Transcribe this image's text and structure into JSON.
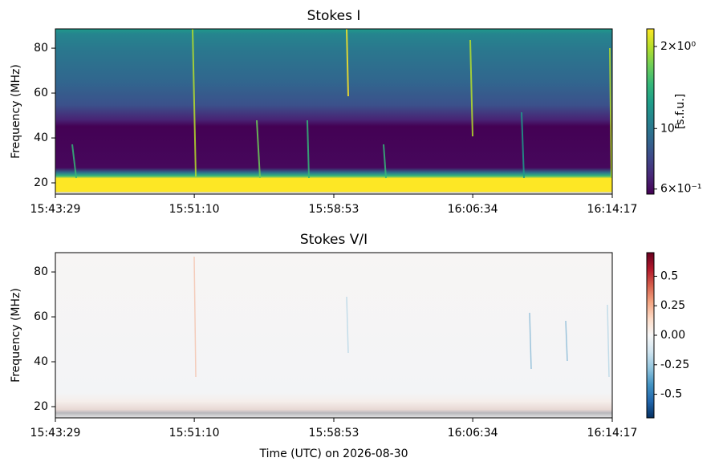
{
  "chart_data": [
    {
      "type": "heatmap",
      "title": "Stokes I",
      "ylabel": "Frequency (MHz)",
      "xlim": [
        "15:43:29",
        "16:14:17"
      ],
      "xticks": [
        "15:43:29",
        "15:51:10",
        "15:58:53",
        "16:06:34",
        "16:14:17"
      ],
      "ylim": [
        15,
        88.6
      ],
      "yticks": [
        20,
        40,
        60,
        80
      ],
      "colorbar": {
        "colormap": "viridis",
        "log": true,
        "clim": [
          0.575,
          2.32
        ],
        "label": "[s.f.u.]",
        "ticks": [
          {
            "value": 2,
            "label": "2×10⁰"
          },
          {
            "value": 1,
            "label": "10⁰"
          },
          {
            "value": 0.6,
            "label": "6×10⁻¹"
          }
        ]
      }
    },
    {
      "type": "heatmap",
      "title": "Stokes V/I",
      "ylabel": "Frequency (MHz)",
      "xlabel": "Time (UTC) on 2026-08-30",
      "xlim": [
        "15:43:29",
        "16:14:17"
      ],
      "xticks": [
        "15:43:29",
        "15:51:10",
        "15:58:53",
        "16:06:34",
        "16:14:17"
      ],
      "ylim": [
        15,
        88.6
      ],
      "yticks": [
        20,
        40,
        60,
        80
      ],
      "colorbar": {
        "colormap": "RdBu_r",
        "log": false,
        "clim": [
          -0.7,
          0.7
        ],
        "ticks": [
          0.5,
          0.25,
          {
            "value": 0,
            "label": "0.00"
          },
          -0.25,
          -0.5
        ]
      }
    }
  ]
}
